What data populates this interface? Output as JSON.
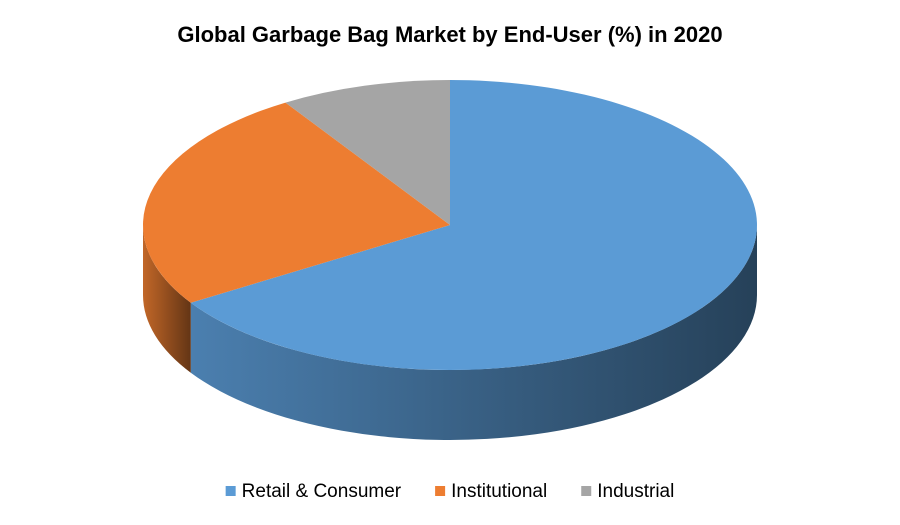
{
  "chart_data": {
    "type": "pie3d",
    "title": "Global Garbage Bag Market by End-User (%) in 2020",
    "categories": [
      "Retail & Consumer",
      "Institutional",
      "Industrial"
    ],
    "values": [
      66,
      25,
      9
    ],
    "colors": [
      "#5b9bd5",
      "#ed7d31",
      "#a5a5a5"
    ]
  }
}
